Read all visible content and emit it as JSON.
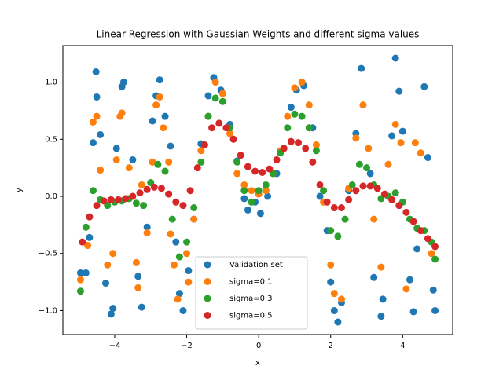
{
  "chart_data": {
    "type": "scatter",
    "title": "Linear Regression with Gaussian Weights and different sigma values",
    "x_label": "x",
    "y_label": "y",
    "xlim": [
      -5.44,
      5.39
    ],
    "ylim": [
      -1.21,
      1.32
    ],
    "xticks": [
      {
        "value": -4,
        "label": "−4"
      },
      {
        "value": -2,
        "label": "−2"
      },
      0,
      2,
      4
    ],
    "yticks": [
      {
        "value": -1,
        "label": "−1.0"
      },
      {
        "value": -0.5,
        "label": "−0.5"
      },
      {
        "value": 0,
        "label": "0.0"
      },
      {
        "value": 0.5,
        "label": "0.5"
      },
      {
        "value": 1,
        "label": "1.0"
      }
    ],
    "legend_position": "lower center",
    "series": [
      {
        "name": "Validation set",
        "color": "#1f77b4",
        "x": [
          -4.95,
          -4.8,
          -4.7,
          -4.6,
          -4.5,
          -4.52,
          -4.4,
          -4.25,
          -4.1,
          -4.05,
          -3.95,
          -3.8,
          -3.75,
          -3.5,
          -3.35,
          -3.25,
          -3.1,
          -2.95,
          -2.85,
          -2.75,
          -2.6,
          -2.45,
          -2.3,
          -2.2,
          -2.1,
          -1.95,
          -1.8,
          -1.6,
          -1.4,
          -1.25,
          -1.05,
          -0.8,
          -0.6,
          -0.4,
          -0.3,
          -0.1,
          0.05,
          0.25,
          0.5,
          0.7,
          0.9,
          1.05,
          1.25,
          1.5,
          1.7,
          1.9,
          2.0,
          2.1,
          2.2,
          2.3,
          2.5,
          2.7,
          2.85,
          3.1,
          3.2,
          3.4,
          3.45,
          3.7,
          3.8,
          3.9,
          4.0,
          4.2,
          4.3,
          4.4,
          4.6,
          4.7,
          4.85,
          4.9
        ],
        "values": [
          -0.67,
          -0.67,
          -0.36,
          0.47,
          0.87,
          1.09,
          0.54,
          -0.76,
          -1.03,
          -0.98,
          0.42,
          0.96,
          1.0,
          0.32,
          -0.7,
          -0.97,
          -0.27,
          0.66,
          0.88,
          1.02,
          0.7,
          0.44,
          -0.4,
          -0.85,
          -1.0,
          -0.65,
          -0.2,
          0.46,
          0.88,
          1.04,
          0.93,
          0.63,
          0.31,
          -0.02,
          -0.12,
          -0.05,
          -0.15,
          0.0,
          0.2,
          0.42,
          0.78,
          0.93,
          0.97,
          0.6,
          0.0,
          -0.3,
          -0.75,
          -1.0,
          -1.1,
          -0.93,
          0.05,
          0.55,
          1.12,
          0.2,
          -0.71,
          -1.05,
          -0.9,
          0.53,
          1.21,
          0.92,
          0.57,
          -0.73,
          -1.01,
          -0.46,
          0.96,
          0.34,
          -0.82,
          -1.0
        ]
      },
      {
        "name": "sigma=0.1",
        "color": "#ff7f0e",
        "x": [
          -4.95,
          -4.75,
          -4.6,
          -4.5,
          -4.4,
          -4.2,
          -4.05,
          -3.95,
          -3.85,
          -3.8,
          -3.6,
          -3.4,
          -3.35,
          -3.25,
          -3.1,
          -2.95,
          -2.85,
          -2.75,
          -2.65,
          -2.5,
          -2.45,
          -2.35,
          -2.25,
          -2.0,
          -1.95,
          -1.8,
          -1.6,
          -1.4,
          -1.2,
          -1.0,
          -0.8,
          -0.6,
          -0.4,
          -0.2,
          0.0,
          0.2,
          0.4,
          0.6,
          0.8,
          1.0,
          1.2,
          1.4,
          1.6,
          1.8,
          2.0,
          2.1,
          2.3,
          2.5,
          2.7,
          2.9,
          3.05,
          3.2,
          3.4,
          3.6,
          3.8,
          3.95,
          4.1,
          4.35,
          4.5,
          4.6,
          4.8
        ],
        "values": [
          -0.73,
          -0.43,
          0.65,
          0.7,
          0.23,
          -0.6,
          -0.5,
          0.32,
          0.7,
          0.73,
          0.25,
          -0.58,
          -0.8,
          0.1,
          -0.32,
          0.3,
          0.8,
          0.87,
          0.6,
          0.3,
          -0.33,
          -0.6,
          -0.9,
          -0.5,
          -0.75,
          -0.2,
          0.4,
          0.7,
          1.0,
          0.9,
          0.55,
          0.2,
          0.1,
          0.05,
          0.02,
          0.05,
          0.2,
          0.4,
          0.7,
          0.95,
          1.0,
          0.8,
          0.45,
          -0.05,
          -0.6,
          -0.85,
          -0.9,
          0.07,
          0.51,
          0.8,
          0.42,
          -0.2,
          -0.62,
          0.28,
          0.63,
          0.47,
          -0.81,
          0.47,
          0.38,
          -0.3,
          -0.5
        ]
      },
      {
        "name": "sigma=0.3",
        "color": "#2ca02c",
        "x": [
          -4.95,
          -4.8,
          -4.6,
          -4.4,
          -4.2,
          -4.0,
          -3.8,
          -3.6,
          -3.4,
          -3.2,
          -3.0,
          -2.8,
          -2.6,
          -2.4,
          -2.2,
          -2.0,
          -1.8,
          -1.6,
          -1.4,
          -1.2,
          -1.0,
          -0.8,
          -0.6,
          -0.4,
          -0.2,
          0.0,
          0.2,
          0.4,
          0.6,
          0.8,
          1.0,
          1.2,
          1.4,
          1.6,
          1.8,
          2.0,
          2.2,
          2.4,
          2.6,
          2.8,
          3.0,
          3.2,
          3.4,
          3.6,
          3.8,
          4.0,
          4.2,
          4.4,
          4.6,
          4.8,
          4.9
        ],
        "values": [
          -0.83,
          -0.27,
          0.05,
          -0.03,
          -0.08,
          -0.05,
          -0.04,
          -0.02,
          -0.06,
          -0.08,
          0.12,
          0.28,
          0.22,
          -0.2,
          -0.53,
          -0.4,
          -0.1,
          0.3,
          0.7,
          0.86,
          0.83,
          0.6,
          0.3,
          0.05,
          -0.05,
          0.05,
          0.1,
          0.2,
          0.38,
          0.6,
          0.72,
          0.7,
          0.6,
          0.4,
          0.05,
          -0.3,
          -0.35,
          -0.2,
          0.1,
          0.28,
          0.25,
          0.1,
          -0.02,
          0.0,
          0.03,
          -0.05,
          -0.2,
          -0.28,
          -0.3,
          -0.4,
          -0.55
        ]
      },
      {
        "name": "sigma=0.5",
        "color": "#d62728",
        "x": [
          -4.9,
          -4.7,
          -4.5,
          -4.3,
          -4.1,
          -3.9,
          -3.7,
          -3.5,
          -3.3,
          -3.1,
          -2.9,
          -2.7,
          -2.5,
          -2.3,
          -2.1,
          -1.9,
          -1.7,
          -1.5,
          -1.3,
          -1.1,
          -0.9,
          -0.7,
          -0.5,
          -0.3,
          -0.1,
          0.1,
          0.3,
          0.5,
          0.7,
          0.9,
          1.1,
          1.3,
          1.5,
          1.7,
          1.9,
          2.1,
          2.3,
          2.5,
          2.7,
          2.9,
          3.1,
          3.3,
          3.5,
          3.7,
          3.9,
          4.1,
          4.3,
          4.5,
          4.7,
          4.9
        ],
        "values": [
          -0.4,
          -0.18,
          -0.08,
          -0.04,
          -0.03,
          -0.03,
          -0.02,
          0.0,
          0.03,
          0.06,
          0.08,
          0.07,
          0.02,
          -0.05,
          -0.08,
          0.05,
          0.25,
          0.45,
          0.6,
          0.64,
          0.6,
          0.5,
          0.36,
          0.26,
          0.22,
          0.21,
          0.24,
          0.32,
          0.42,
          0.48,
          0.47,
          0.42,
          0.3,
          0.1,
          -0.05,
          -0.1,
          -0.1,
          -0.03,
          0.05,
          0.09,
          0.09,
          0.07,
          0.02,
          -0.03,
          -0.08,
          -0.14,
          -0.22,
          -0.3,
          -0.37,
          -0.44
        ]
      }
    ]
  }
}
